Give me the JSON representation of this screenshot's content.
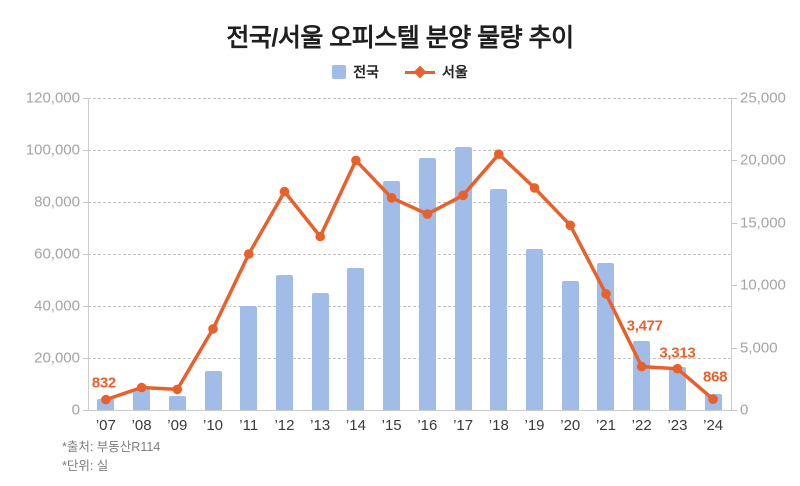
{
  "title": "전국/서울 오피스텔 분양 물량 추이",
  "legend": {
    "nationwide": "전국",
    "seoul": "서울"
  },
  "footer": {
    "source": "*출처: 부동산R114",
    "unit": "*단위: 실"
  },
  "colors": {
    "bar": "#a2bce8",
    "line": "#e8612c",
    "point_label": "#e8612c",
    "grid": "#c3c3c3",
    "axis": "#cccccc",
    "axis_text": "#a4a4a4",
    "x_text": "#3a3a3a",
    "title_text": "#1f1f1f"
  },
  "chart_data": {
    "type": "bar+line combo, dual y-axis",
    "title": "전국/서울 오피스텔 분양 물량 추이",
    "categories": [
      "’07",
      "’08",
      "’09",
      "’10",
      "’11",
      "’12",
      "’13",
      "’14",
      "’15",
      "’16",
      "’17",
      "’18",
      "’19",
      "’20",
      "’21",
      "’22",
      "’23",
      "’24"
    ],
    "series": [
      {
        "name": "전국",
        "type": "bar",
        "axis": "left",
        "values": [
          4200,
          8200,
          5500,
          15000,
          40000,
          52000,
          45000,
          54500,
          88000,
          97000,
          101000,
          85000,
          62000,
          49500,
          56500,
          26500,
          16500,
          6000
        ]
      },
      {
        "name": "서울",
        "type": "line",
        "axis": "right",
        "values": [
          832,
          1800,
          1650,
          6500,
          12500,
          17500,
          13900,
          20000,
          17000,
          15700,
          17200,
          20500,
          17800,
          14800,
          9300,
          3477,
          3313,
          868
        ],
        "point_labels": [
          {
            "index": 0,
            "text": "832",
            "dx": -2,
            "dy": -17
          },
          {
            "index": 15,
            "text": "3,477",
            "dx": 3,
            "dy": -41
          },
          {
            "index": 16,
            "text": "3,313",
            "dx": 0,
            "dy": -16
          },
          {
            "index": 17,
            "text": "868",
            "dx": 2,
            "dy": -22
          }
        ]
      }
    ],
    "left_axis": {
      "min": 0,
      "max": 120000,
      "step": 20000
    },
    "right_axis": {
      "min": 0,
      "max": 25000,
      "step": 5000
    },
    "grid": "horizontal dashed, at left-axis ticks",
    "legend_position": "top center",
    "unit": "실",
    "source": "부동산R114"
  }
}
